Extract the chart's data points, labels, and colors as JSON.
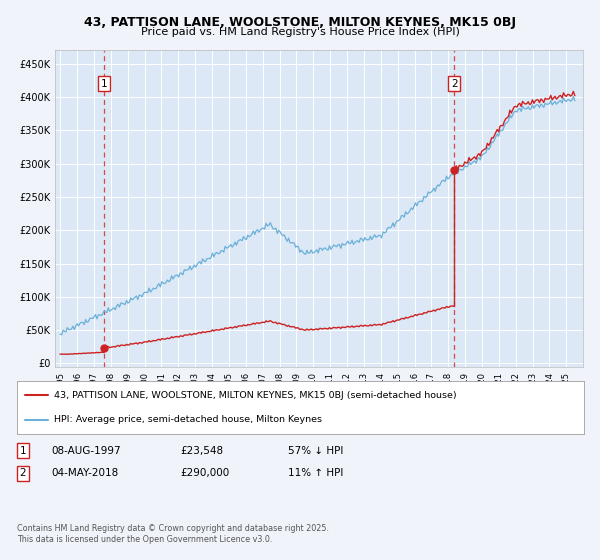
{
  "title1": "43, PATTISON LANE, WOOLSTONE, MILTON KEYNES, MK15 0BJ",
  "title2": "Price paid vs. HM Land Registry's House Price Index (HPI)",
  "background_color": "#f0f4fa",
  "plot_bg_color": "#dce8f5",
  "grid_color": "#ffffff",
  "yticks": [
    0,
    50000,
    100000,
    150000,
    200000,
    250000,
    300000,
    350000,
    400000,
    450000
  ],
  "ytick_labels": [
    "£0",
    "£50K",
    "£100K",
    "£150K",
    "£200K",
    "£250K",
    "£300K",
    "£350K",
    "£400K",
    "£450K"
  ],
  "xlim": [
    1994.7,
    2026.0
  ],
  "ylim": [
    -5000,
    470000
  ],
  "hpi_color": "#6ab0d8",
  "price_color": "#cc2222",
  "marker1_year": 1997.6,
  "marker1_price": 23548,
  "marker2_year": 2018.35,
  "marker2_price": 290000,
  "legend_label1": "43, PATTISON LANE, WOOLSTONE, MILTON KEYNES, MK15 0BJ (semi-detached house)",
  "legend_label2": "HPI: Average price, semi-detached house, Milton Keynes",
  "footer_line1": "Contains HM Land Registry data © Crown copyright and database right 2025.",
  "footer_line2": "This data is licensed under the Open Government Licence v3.0."
}
